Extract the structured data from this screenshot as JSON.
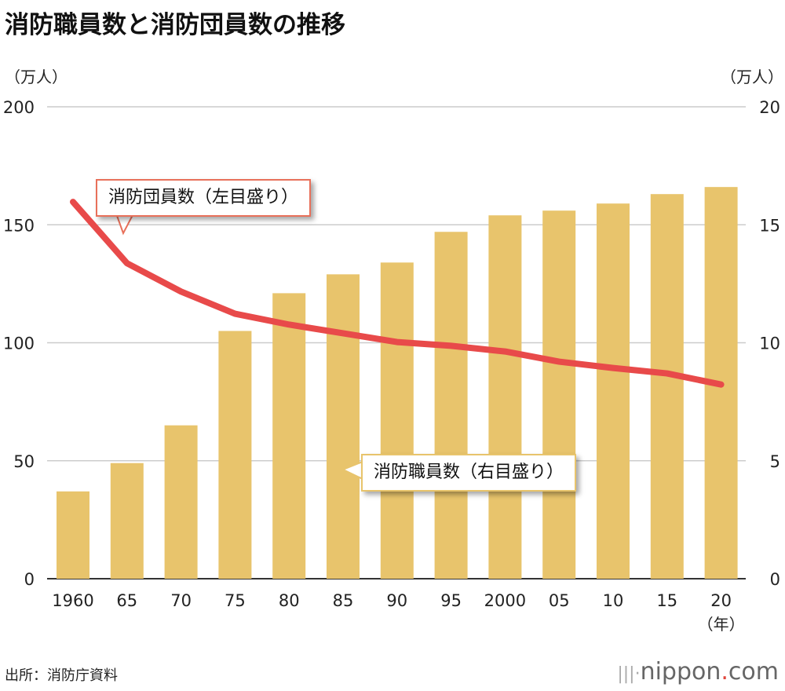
{
  "title": "消防職員数と消防団員数の推移",
  "unit_left": "（万人）",
  "unit_right": "（万人）",
  "source": "出所：消防庁資料",
  "logo": {
    "name": "nippon",
    "dot": ".",
    "tld": "com"
  },
  "colors": {
    "bar": "#e8c46c",
    "line": "#e84a4a",
    "grid": "#cccccc",
    "callout_line_border": "#e8705a",
    "callout_bar_border": "#e8c46c"
  },
  "chart_data": {
    "type": "bar+line",
    "title": "消防職員数と消防団員数の推移",
    "categories": [
      "1960",
      "65",
      "70",
      "75",
      "80",
      "85",
      "90",
      "95",
      "2000",
      "05",
      "10",
      "15",
      "20"
    ],
    "x_unit_label": "（年）",
    "left_axis": {
      "label": "（万人）",
      "ylim": [
        0,
        200
      ],
      "ticks": [
        "0",
        "50",
        "100",
        "150",
        "200"
      ]
    },
    "right_axis": {
      "label": "（万人）",
      "ylim": [
        0,
        20
      ],
      "ticks": [
        "0",
        "5",
        "10",
        "15",
        "20"
      ]
    },
    "grid": true,
    "series": [
      {
        "name": "消防職員数（右目盛り）",
        "type": "bar",
        "axis": "right",
        "values": [
          3.7,
          4.9,
          6.5,
          10.5,
          12.1,
          12.9,
          13.4,
          14.7,
          15.4,
          15.6,
          15.9,
          16.3,
          16.6
        ]
      },
      {
        "name": "消防団員数（左目盛り）",
        "type": "line",
        "axis": "left",
        "values": [
          159.7,
          133.7,
          121.7,
          112.3,
          107.7,
          104.0,
          100.3,
          98.7,
          96.3,
          92.0,
          89.3,
          87.0,
          82.3
        ]
      }
    ]
  }
}
